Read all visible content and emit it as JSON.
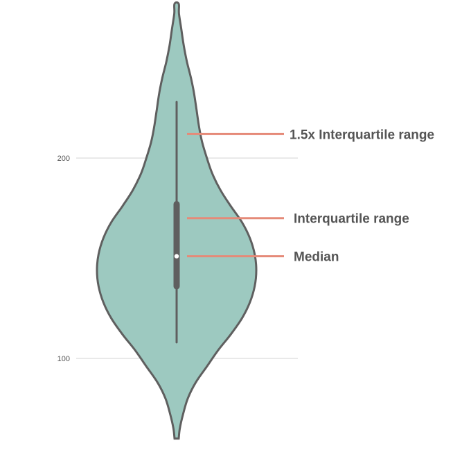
{
  "chart_data": {
    "type": "violin",
    "yticks": [
      100,
      200
    ],
    "ylim": [
      60,
      280
    ],
    "grid": true,
    "colors": {
      "fill": "#9dc9c0",
      "outline": "#5f5f5f",
      "annotation": "#e58a78"
    },
    "violin": {
      "min": 60,
      "max": 277,
      "whisker_low": 108,
      "whisker_high": 228,
      "q1": 136,
      "q3": 177,
      "median": 151,
      "density": [
        [
          60,
          0.01
        ],
        [
          65,
          0.04
        ],
        [
          72,
          0.08
        ],
        [
          80,
          0.14
        ],
        [
          88,
          0.24
        ],
        [
          96,
          0.38
        ],
        [
          104,
          0.52
        ],
        [
          112,
          0.68
        ],
        [
          120,
          0.82
        ],
        [
          128,
          0.92
        ],
        [
          136,
          0.98
        ],
        [
          144,
          1.0
        ],
        [
          152,
          0.98
        ],
        [
          160,
          0.92
        ],
        [
          168,
          0.82
        ],
        [
          176,
          0.68
        ],
        [
          184,
          0.55
        ],
        [
          192,
          0.45
        ],
        [
          200,
          0.38
        ],
        [
          208,
          0.32
        ],
        [
          216,
          0.28
        ],
        [
          224,
          0.25
        ],
        [
          232,
          0.22
        ],
        [
          240,
          0.18
        ],
        [
          248,
          0.13
        ],
        [
          256,
          0.09
        ],
        [
          264,
          0.06
        ],
        [
          272,
          0.03
        ],
        [
          277,
          0.02
        ]
      ]
    },
    "annotations": [
      {
        "label": "1.5x Interquartile range",
        "value": 212
      },
      {
        "label": "Interquartile range",
        "value": 170
      },
      {
        "label": "Median",
        "value": 151
      }
    ]
  }
}
